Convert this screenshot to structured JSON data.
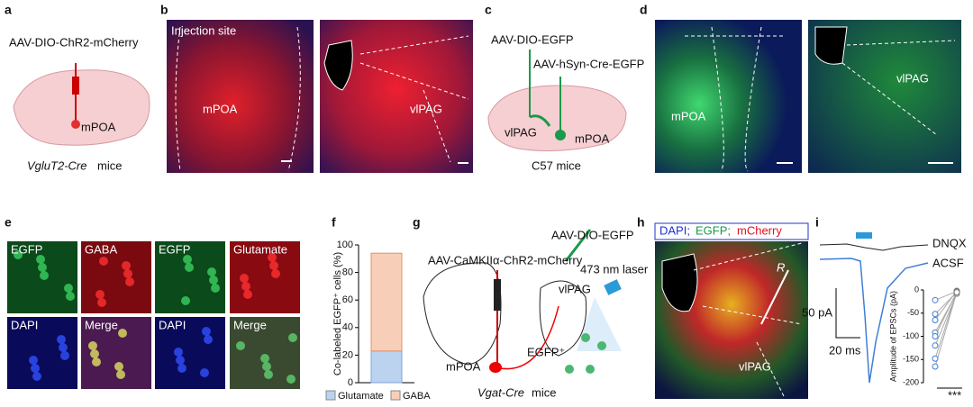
{
  "panel_labels": [
    "a",
    "b",
    "c",
    "d",
    "e",
    "f",
    "g",
    "h",
    "i"
  ],
  "a": {
    "virus": "AAV-DIO-ChR2-mCherry",
    "region": "mPOA",
    "mouse_line": "VgluT2-Cre",
    "mice": "mice"
  },
  "b": {
    "injection": "Injection site",
    "left": "mPOA",
    "right": "vlPAG"
  },
  "c": {
    "virus1": "AAV-DIO-EGFP",
    "virus2": "AAV-hSyn-Cre-EGFP",
    "region1": "vlPAG",
    "region2": "mPOA",
    "mice": "C57 mice"
  },
  "d": {
    "left": "mPOA",
    "right": "vlPAG"
  },
  "e": {
    "tiles": [
      "EGFP",
      "GABA",
      "EGFP",
      "Glutamate",
      "DAPI",
      "Merge",
      "DAPI",
      "Merge"
    ]
  },
  "g": {
    "virus1": "AAV-CaMKIIα-ChR2-mCherry",
    "virus2": "AAV-DIO-EGFP",
    "laser": "473 nm laser",
    "region1": "vlPAG",
    "region2": "mPOA",
    "cells": "EGFP⁺",
    "mouse_line": "Vgat-Cre",
    "mice": "mice"
  },
  "h": {
    "channels": [
      "DAPI;",
      "EGFP;",
      "mCherry"
    ],
    "marker": "R",
    "region": "vlPAG"
  },
  "i": {
    "scale_y": "50 pA",
    "scale_x": "20 ms",
    "significance": "***"
  },
  "chart_data": [
    {
      "type": "bar",
      "ylabel": "Co-labeled EGFP⁺ cells (%)",
      "categories": [
        null
      ],
      "stacked": true,
      "ylim": [
        0,
        100
      ],
      "yticks": [
        0,
        20,
        40,
        60,
        80,
        100
      ],
      "series": [
        {
          "name": "Glutamate",
          "color": "#bcd3ef",
          "values": [
            23
          ]
        },
        {
          "name": "GABA",
          "color": "#f7cfb8",
          "values": [
            71
          ]
        }
      ]
    },
    {
      "type": "scatter",
      "ylabel": "Amplitude of EPSCs (pA)",
      "ylim": [
        -200,
        0
      ],
      "yticks": [
        0,
        -50,
        -100,
        -150,
        -200
      ],
      "series": [
        {
          "name": "ACSF",
          "color": "#3d7fd6",
          "values": [
            -22,
            -52,
            -65,
            -92,
            -100,
            -120,
            -148,
            -165
          ]
        },
        {
          "name": "DNQX",
          "color": "#777777",
          "values": [
            -3,
            -5,
            -2,
            -6,
            -4,
            -8,
            -3,
            -5
          ]
        }
      ]
    }
  ]
}
